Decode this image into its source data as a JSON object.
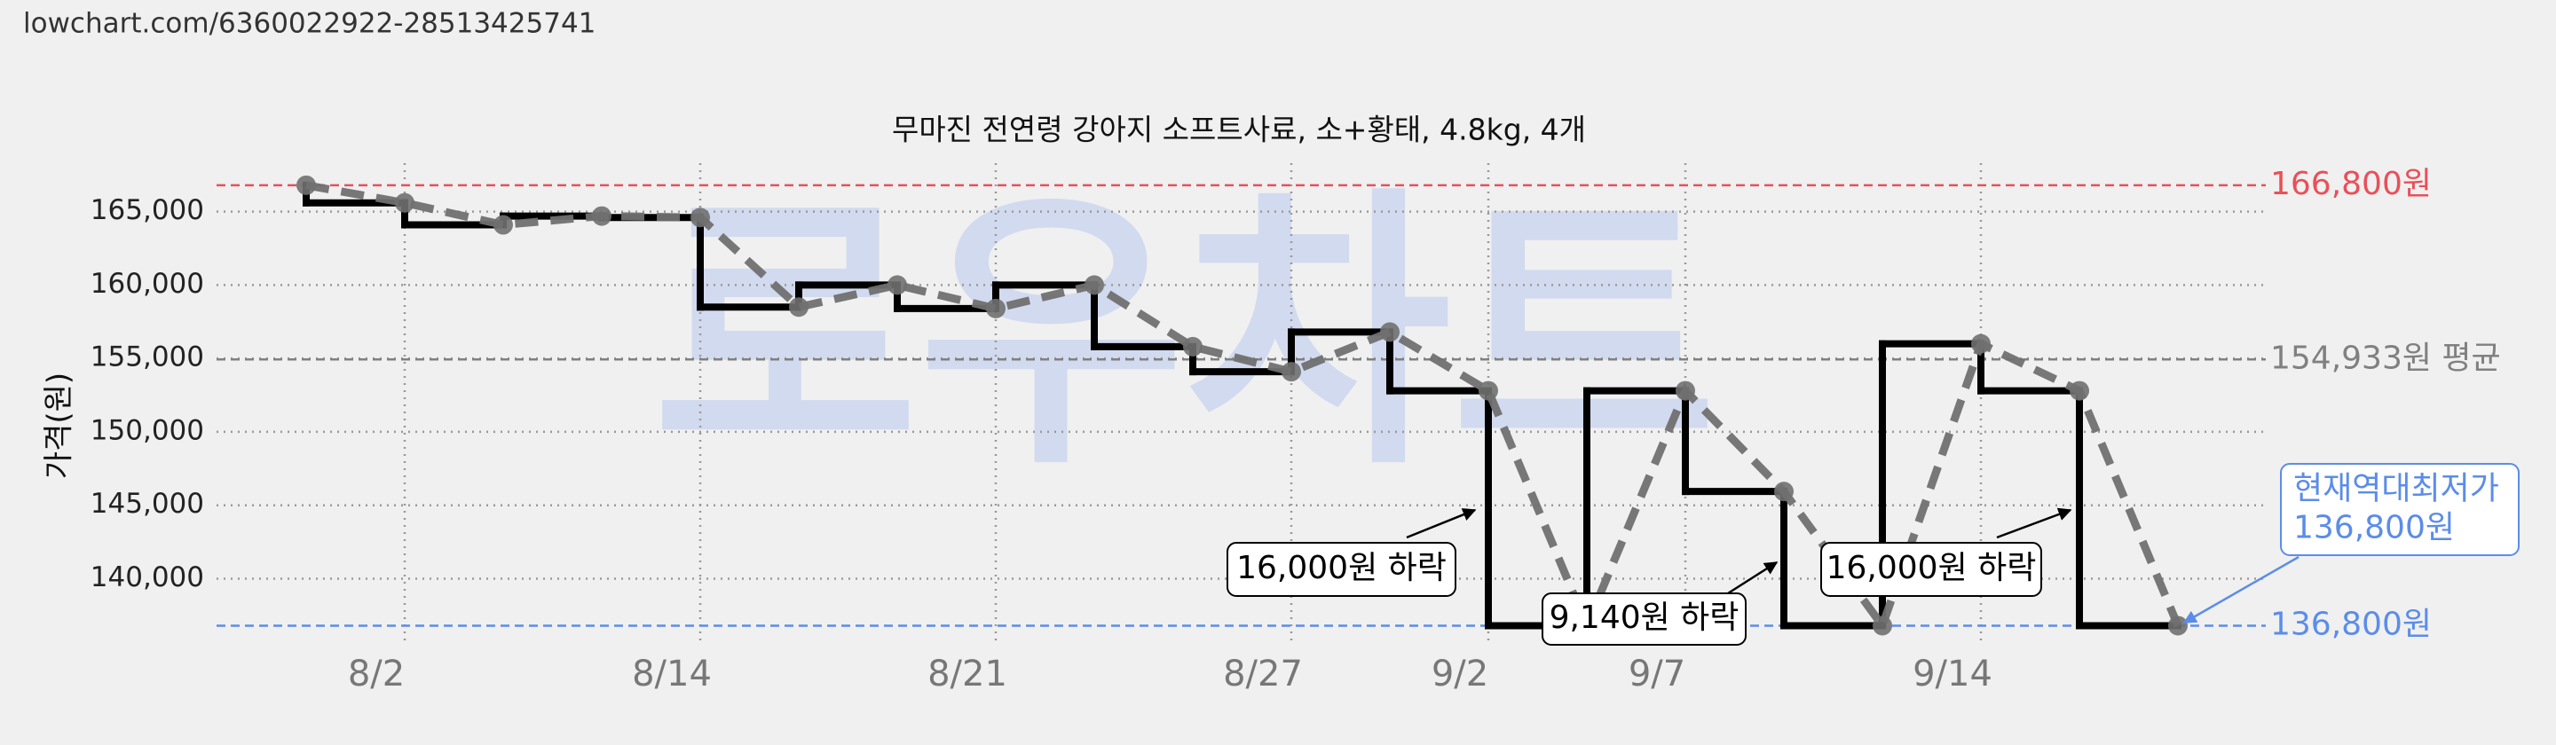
{
  "chart_data": {
    "type": "line",
    "url": "lowchart.com/6360022922-28513425741",
    "title": "무마진 전연령 강아지 소프트사료, 소+황태, 4.8kg, 4개",
    "watermark": "로우차트",
    "y_label": "가격(원)",
    "categories": [
      null,
      "8/2",
      null,
      null,
      "8/14",
      null,
      null,
      "8/21",
      null,
      null,
      "8/27",
      null,
      "9/2",
      null,
      "9/7",
      null,
      null,
      "9/14",
      null,
      null
    ],
    "values": [
      166800,
      165600,
      164100,
      164700,
      164600,
      158500,
      160000,
      158400,
      160000,
      155800,
      154100,
      156800,
      152800,
      136800,
      152800,
      145940,
      136800,
      156000,
      152800,
      136800
    ],
    "color": "#707070",
    "step_color": "#000000",
    "ylim": [
      135800,
      168300
    ],
    "yticks": [
      {
        "value": 140000,
        "label": "140,000"
      },
      {
        "value": 145000,
        "label": "145,000"
      },
      {
        "value": 150000,
        "label": "150,000"
      },
      {
        "value": 155000,
        "label": "155,000"
      },
      {
        "value": 160000,
        "label": "160,000"
      },
      {
        "value": 165000,
        "label": "165,000"
      }
    ],
    "grid": true,
    "reference_lines": [
      {
        "value": 166800,
        "label": "166,800원",
        "color": "#e8505a"
      },
      {
        "value": 154933,
        "label": "154,933원 평균",
        "color": "#808080"
      },
      {
        "value": 136800,
        "label": "136,800원",
        "color": "#5b8de8"
      }
    ],
    "annotations": [
      [
        "16,000원 하락"
      ],
      [
        "9,140원 하락"
      ],
      [
        "16,000원 하락"
      ],
      [
        "현재역대최저가",
        "136,800원"
      ]
    ]
  }
}
